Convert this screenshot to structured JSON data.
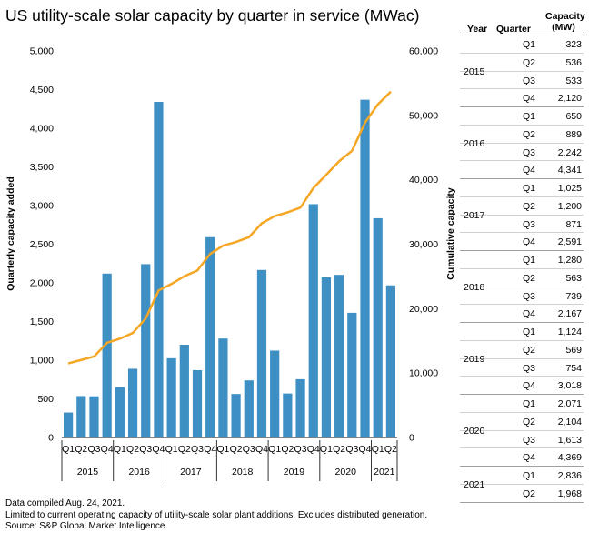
{
  "title": "US utility-scale solar capacity by quarter in service (MWac)",
  "chart_data": {
    "type": "bar",
    "title": "US utility-scale solar capacity by quarter in service (MWac)",
    "ylabel": "Quarterly capacity added",
    "y2label": "Cumulative capacity",
    "ylim": [
      0,
      5000
    ],
    "y2lim": [
      0,
      60000
    ],
    "yticks": [
      "0",
      "500",
      "1,000",
      "1,500",
      "2,000",
      "2,500",
      "3,000",
      "3,500",
      "4,000",
      "4,500",
      "5,000"
    ],
    "y2ticks": [
      "0",
      "10,000",
      "20,000",
      "30,000",
      "40,000",
      "50,000",
      "60,000"
    ],
    "categories": [
      "Q1",
      "Q2",
      "Q3",
      "Q4",
      "Q1",
      "Q2",
      "Q3",
      "Q4",
      "Q1",
      "Q2",
      "Q3",
      "Q4",
      "Q1",
      "Q2",
      "Q3",
      "Q4",
      "Q1",
      "Q2",
      "Q3",
      "Q4",
      "Q1",
      "Q2",
      "Q3",
      "Q4",
      "Q1",
      "Q2"
    ],
    "years": [
      {
        "label": "2015",
        "count": 4
      },
      {
        "label": "2016",
        "count": 4
      },
      {
        "label": "2017",
        "count": 4
      },
      {
        "label": "2018",
        "count": 4
      },
      {
        "label": "2019",
        "count": 4
      },
      {
        "label": "2020",
        "count": 4
      },
      {
        "label": "2021",
        "count": 2
      }
    ],
    "series": [
      {
        "type": "bar",
        "color": "#3d8fc4",
        "values": [
          323,
          536,
          533,
          2120,
          650,
          889,
          2242,
          4341,
          1025,
          1200,
          871,
          2591,
          1280,
          563,
          739,
          2167,
          1124,
          569,
          754,
          3018,
          2071,
          2104,
          1613,
          4369,
          2836,
          1968
        ]
      },
      {
        "type": "line",
        "axis": "right",
        "color": "#f5a623",
        "values": [
          11500,
          12036,
          12569,
          14689,
          15339,
          16228,
          18470,
          22811,
          23836,
          25036,
          25907,
          28498,
          29778,
          30341,
          31080,
          33247,
          34371,
          34940,
          35694,
          38712,
          40783,
          42887,
          44500,
          48869,
          51705,
          53673
        ]
      }
    ],
    "grid": false
  },
  "table": {
    "headers": {
      "year": "Year",
      "quarter": "Quarter",
      "capacity": "Capacity (MW)"
    },
    "groups": [
      {
        "year": "2015",
        "rows": [
          {
            "q": "Q1",
            "v": "323"
          },
          {
            "q": "Q2",
            "v": "536"
          },
          {
            "q": "Q3",
            "v": "533"
          },
          {
            "q": "Q4",
            "v": "2,120"
          }
        ]
      },
      {
        "year": "2016",
        "rows": [
          {
            "q": "Q1",
            "v": "650"
          },
          {
            "q": "Q2",
            "v": "889"
          },
          {
            "q": "Q3",
            "v": "2,242"
          },
          {
            "q": "Q4",
            "v": "4,341"
          }
        ]
      },
      {
        "year": "2017",
        "rows": [
          {
            "q": "Q1",
            "v": "1,025"
          },
          {
            "q": "Q2",
            "v": "1,200"
          },
          {
            "q": "Q3",
            "v": "871"
          },
          {
            "q": "Q4",
            "v": "2,591"
          }
        ]
      },
      {
        "year": "2018",
        "rows": [
          {
            "q": "Q1",
            "v": "1,280"
          },
          {
            "q": "Q2",
            "v": "563"
          },
          {
            "q": "Q3",
            "v": "739"
          },
          {
            "q": "Q4",
            "v": "2,167"
          }
        ]
      },
      {
        "year": "2019",
        "rows": [
          {
            "q": "Q1",
            "v": "1,124"
          },
          {
            "q": "Q2",
            "v": "569"
          },
          {
            "q": "Q3",
            "v": "754"
          },
          {
            "q": "Q4",
            "v": "3,018"
          }
        ]
      },
      {
        "year": "2020",
        "rows": [
          {
            "q": "Q1",
            "v": "2,071"
          },
          {
            "q": "Q2",
            "v": "2,104"
          },
          {
            "q": "Q3",
            "v": "1,613"
          },
          {
            "q": "Q4",
            "v": "4,369"
          }
        ]
      },
      {
        "year": "2021",
        "rows": [
          {
            "q": "Q1",
            "v": "2,836"
          },
          {
            "q": "Q2",
            "v": "1,968"
          }
        ]
      }
    ]
  },
  "notes": [
    "Data compiled Aug. 24, 2021.",
    "Limited to current operating capacity of utility-scale solar plant additions. Excludes distributed generation.",
    "Source: S&P Global Market Intelligence"
  ]
}
